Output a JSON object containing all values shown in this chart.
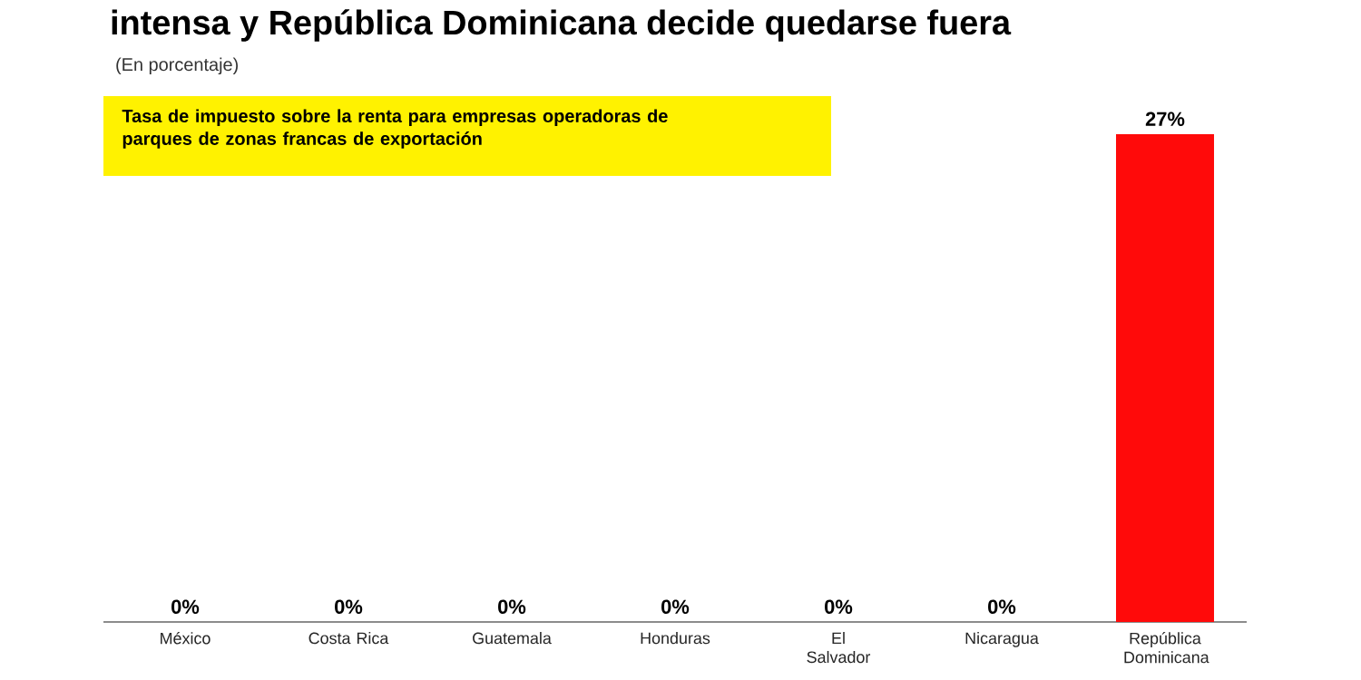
{
  "chart_data": {
    "type": "bar",
    "title": "intensa y República Dominicana decide quedarse fuera",
    "subtitle": "(En porcentaje)",
    "annotations": [
      "Tasa de impuesto sobre la renta para empresas operadoras de parques de zonas francas de exportación"
    ],
    "categories": [
      "México",
      "Costa Rica",
      "Guatemala",
      "Honduras",
      "El Salvador",
      "Nicaragua",
      "República Dominicana"
    ],
    "values": [
      0,
      0,
      0,
      0,
      0,
      0,
      27
    ],
    "value_labels": [
      "0%",
      "0%",
      "0%",
      "0%",
      "0%",
      "0%",
      "27%"
    ],
    "color": "#ff0a0a"
  }
}
